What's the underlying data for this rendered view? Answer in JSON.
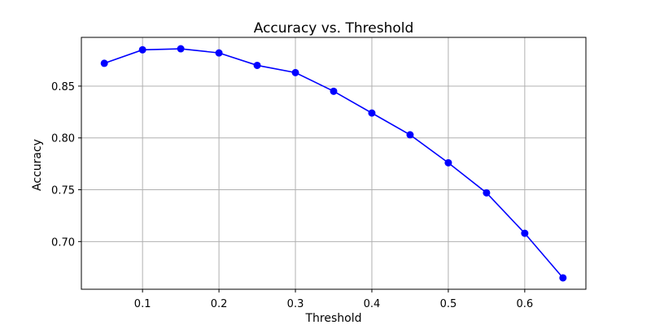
{
  "chart_data": {
    "type": "line",
    "title": "Accuracy vs. Threshold",
    "xlabel": "Threshold",
    "ylabel": "Accuracy",
    "x": [
      0.05,
      0.1,
      0.15,
      0.2,
      0.25,
      0.3,
      0.35,
      0.4,
      0.45,
      0.5,
      0.55,
      0.6,
      0.65
    ],
    "series": [
      {
        "values": [
          0.872,
          0.885,
          0.886,
          0.882,
          0.87,
          0.863,
          0.845,
          0.824,
          0.803,
          0.776,
          0.747,
          0.708,
          0.665
        ],
        "color": "#0000ff",
        "marker": "circle"
      }
    ],
    "xlim": [
      0.02,
      0.68
    ],
    "ylim": [
      0.654,
      0.897
    ],
    "xticks": [
      0.1,
      0.2,
      0.3,
      0.4,
      0.5,
      0.6
    ],
    "xtick_labels": [
      "0.1",
      "0.2",
      "0.3",
      "0.4",
      "0.5",
      "0.6"
    ],
    "yticks": [
      0.7,
      0.75,
      0.8,
      0.85
    ],
    "ytick_labels": [
      "0.70",
      "0.75",
      "0.80",
      "0.85"
    ],
    "grid": true
  }
}
